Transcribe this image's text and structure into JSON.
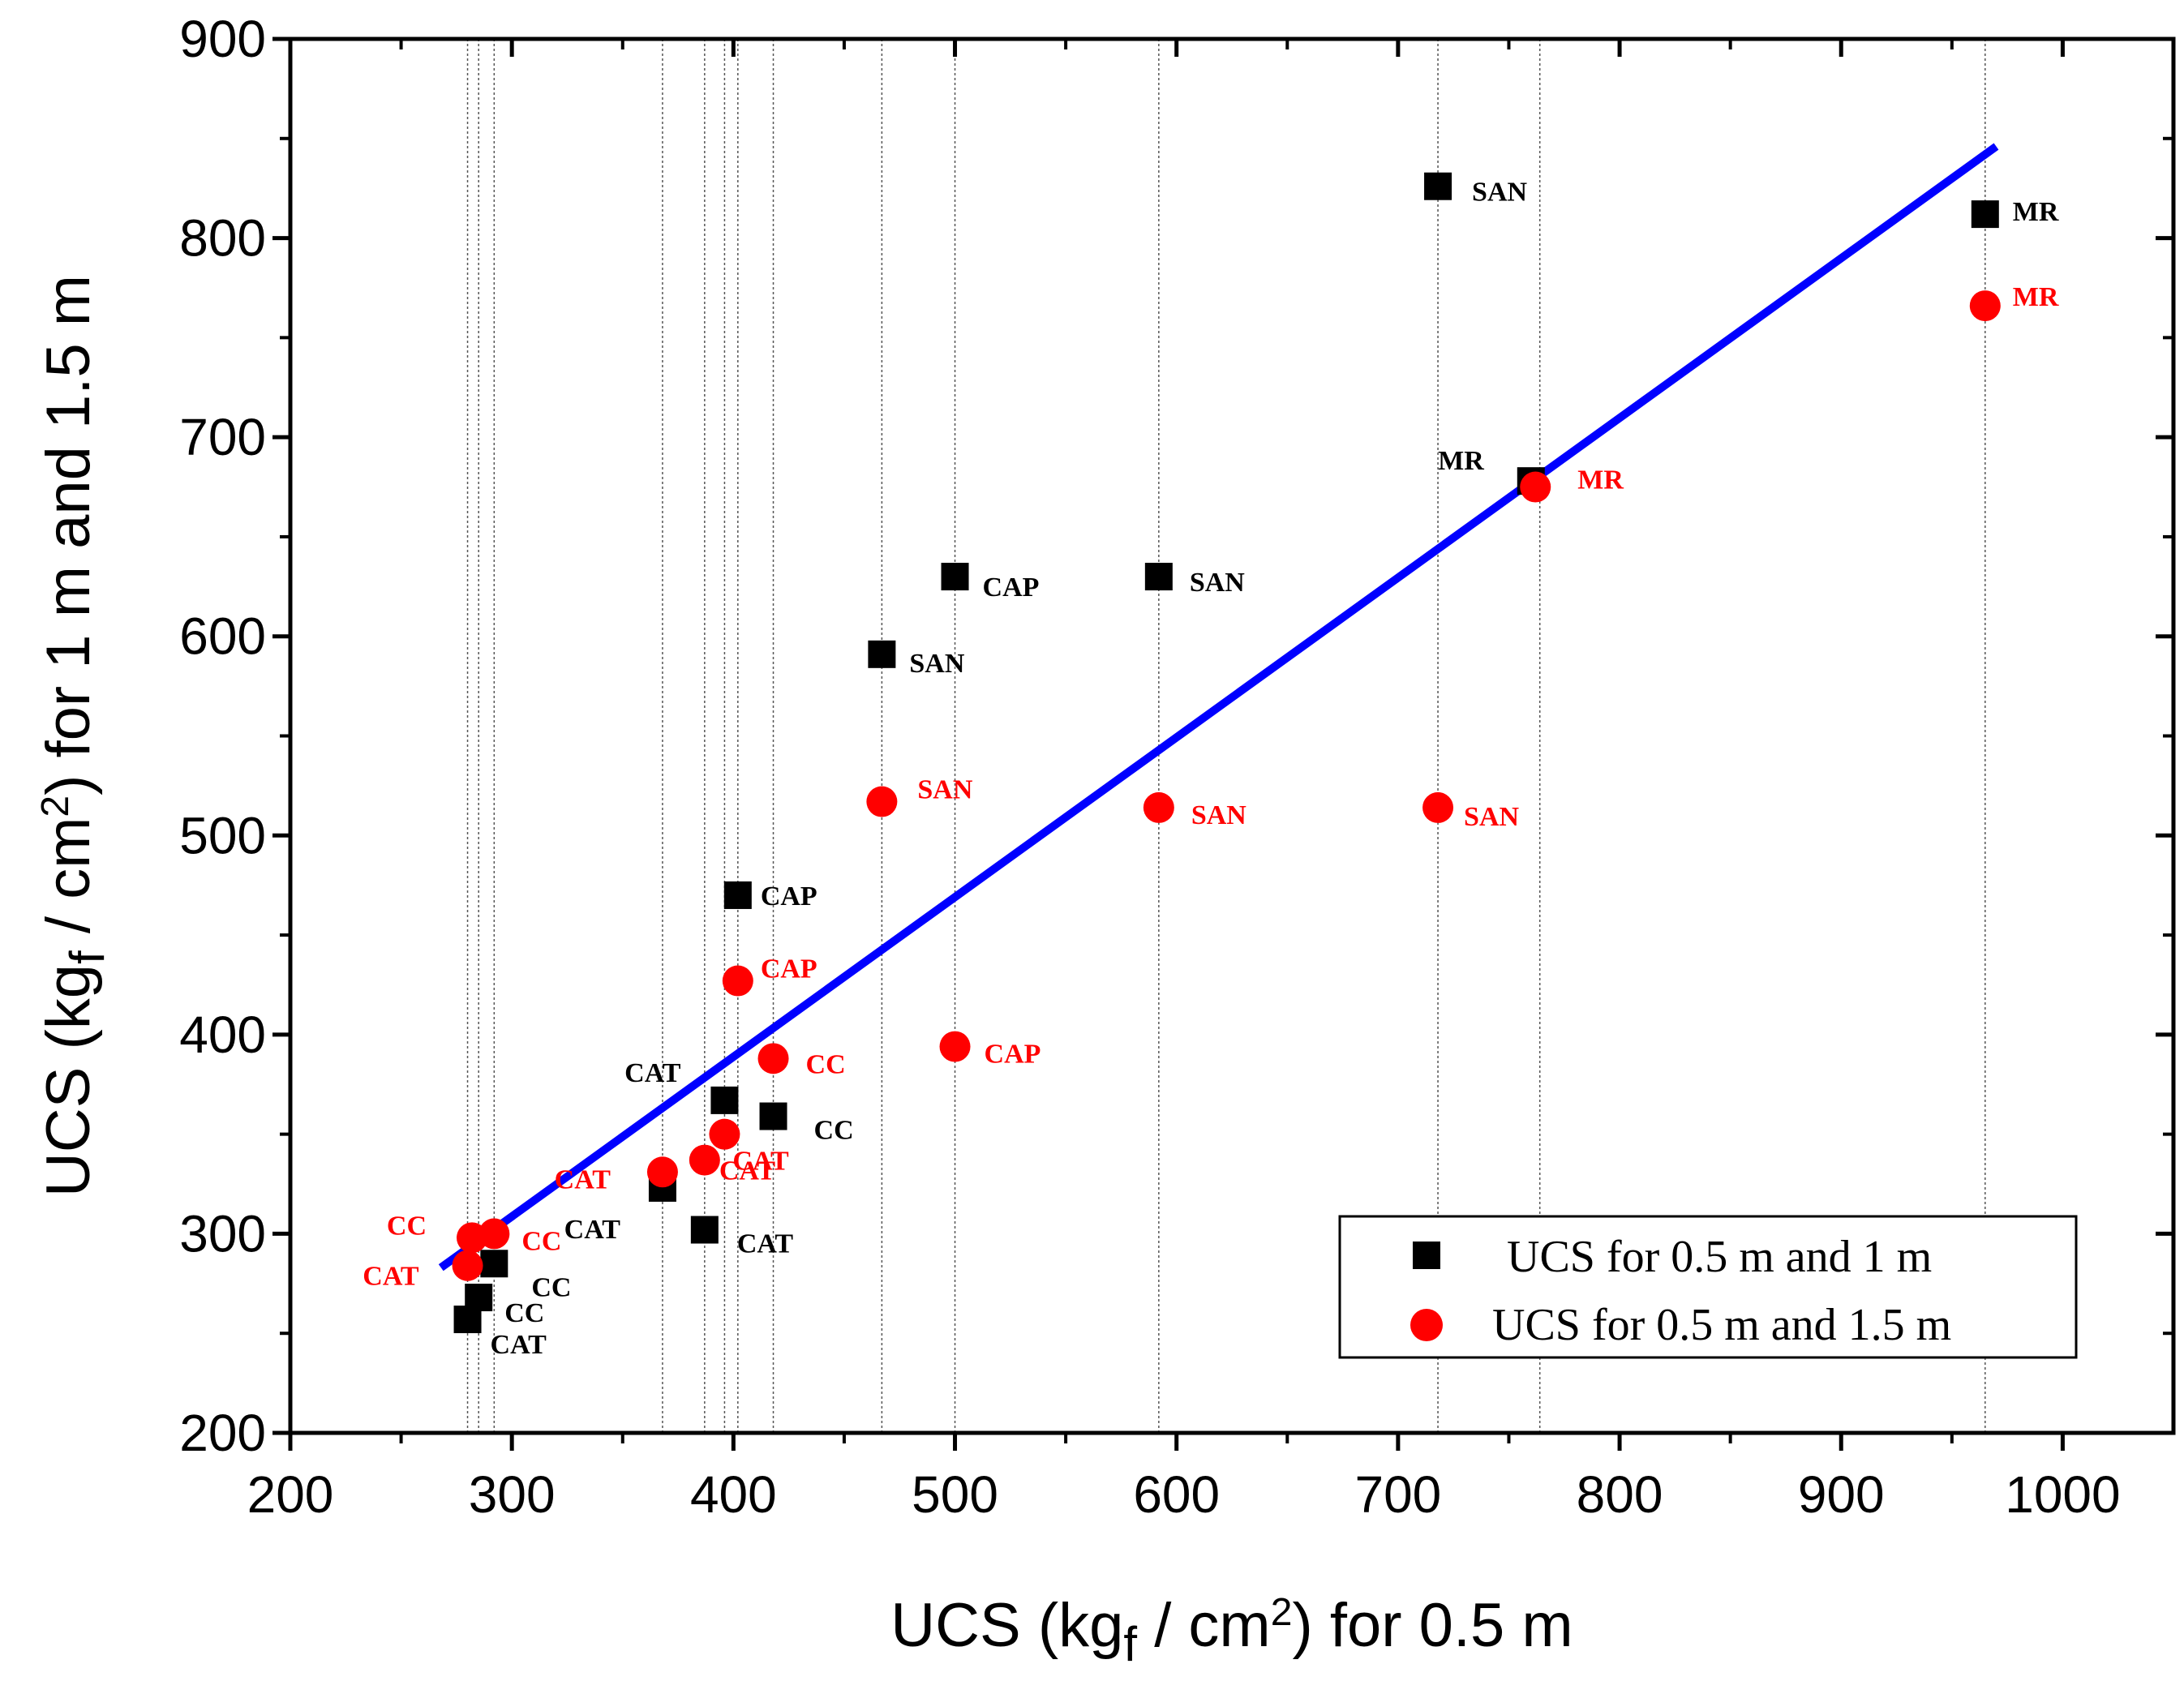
{
  "chart_data": {
    "type": "scatter",
    "title": "",
    "xlabel": "UCS (kgf / cm2) for 0.5 m",
    "xlabel_parts": {
      "pre": "UCS (kg",
      "sub": "f",
      "mid": " / cm",
      "sup": "2",
      "post": ") for 0.5 m"
    },
    "ylabel": "UCS (kgf / cm2) for 1 m and 1.5 m",
    "ylabel_parts": {
      "pre": "UCS (kg",
      "sub": "f",
      "mid": " / cm",
      "sup": "2",
      "post": ") for 1 m and 1.5 m"
    },
    "xlim": [
      200,
      1050
    ],
    "ylim": [
      200,
      900
    ],
    "x_ticks": [
      200,
      300,
      400,
      500,
      600,
      700,
      800,
      900,
      1000
    ],
    "y_ticks": [
      200,
      300,
      400,
      500,
      600,
      700,
      800,
      900
    ],
    "x_tick_labels": [
      "200",
      "300",
      "400",
      "500",
      "600",
      "700",
      "800",
      "900",
      "1000"
    ],
    "y_tick_labels": [
      "200",
      "300",
      "400",
      "500",
      "600",
      "700",
      "800",
      "900"
    ],
    "vertical_reference_lines": [
      280,
      285,
      292,
      368,
      387,
      396,
      402,
      418,
      467,
      500,
      592,
      718,
      764,
      965
    ],
    "series": [
      {
        "name": "UCS for 0.5 m and 1 m",
        "marker": "square",
        "color": "#000000",
        "points": [
          {
            "x": 280,
            "y": 257,
            "label": "CAT"
          },
          {
            "x": 285,
            "y": 268,
            "label": "CC"
          },
          {
            "x": 292,
            "y": 285,
            "label": "CC"
          },
          {
            "x": 368,
            "y": 323,
            "label": "CAT"
          },
          {
            "x": 387,
            "y": 302,
            "label": "CAT"
          },
          {
            "x": 396,
            "y": 367,
            "label": "CAT"
          },
          {
            "x": 418,
            "y": 359,
            "label": "CC"
          },
          {
            "x": 402,
            "y": 470,
            "label": "CAP"
          },
          {
            "x": 467,
            "y": 591,
            "label": "SAN"
          },
          {
            "x": 500,
            "y": 630,
            "label": "CAP"
          },
          {
            "x": 592,
            "y": 630,
            "label": "SAN"
          },
          {
            "x": 718,
            "y": 826,
            "label": "SAN"
          },
          {
            "x": 760,
            "y": 678,
            "label": "MR"
          },
          {
            "x": 965,
            "y": 812,
            "label": "MR"
          }
        ]
      },
      {
        "name": "UCS for 0.5 m and 1.5 m",
        "marker": "circle",
        "color": "#ff0000",
        "points": [
          {
            "x": 280,
            "y": 284,
            "label": "CAT"
          },
          {
            "x": 282,
            "y": 298,
            "label": "CC"
          },
          {
            "x": 292,
            "y": 300,
            "label": "CC"
          },
          {
            "x": 368,
            "y": 331,
            "label": "CAT"
          },
          {
            "x": 387,
            "y": 337,
            "label": "CAT"
          },
          {
            "x": 396,
            "y": 350,
            "label": "CAT"
          },
          {
            "x": 418,
            "y": 388,
            "label": "CC"
          },
          {
            "x": 402,
            "y": 427,
            "label": "CAP"
          },
          {
            "x": 500,
            "y": 394,
            "label": "CAP"
          },
          {
            "x": 467,
            "y": 517,
            "label": "SAN"
          },
          {
            "x": 592,
            "y": 514,
            "label": "SAN"
          },
          {
            "x": 718,
            "y": 514,
            "label": "SAN"
          },
          {
            "x": 762,
            "y": 675,
            "label": "MR"
          },
          {
            "x": 965,
            "y": 766,
            "label": "MR"
          }
        ]
      }
    ],
    "fit_line": {
      "x": [
        268,
        970
      ],
      "y": [
        283,
        846
      ],
      "color": "#0000ff"
    },
    "legend": {
      "position": "bottom-right",
      "entries": [
        "UCS for 0.5 m and 1 m",
        "UCS for 0.5 m and 1.5 m"
      ]
    },
    "grid": false
  }
}
